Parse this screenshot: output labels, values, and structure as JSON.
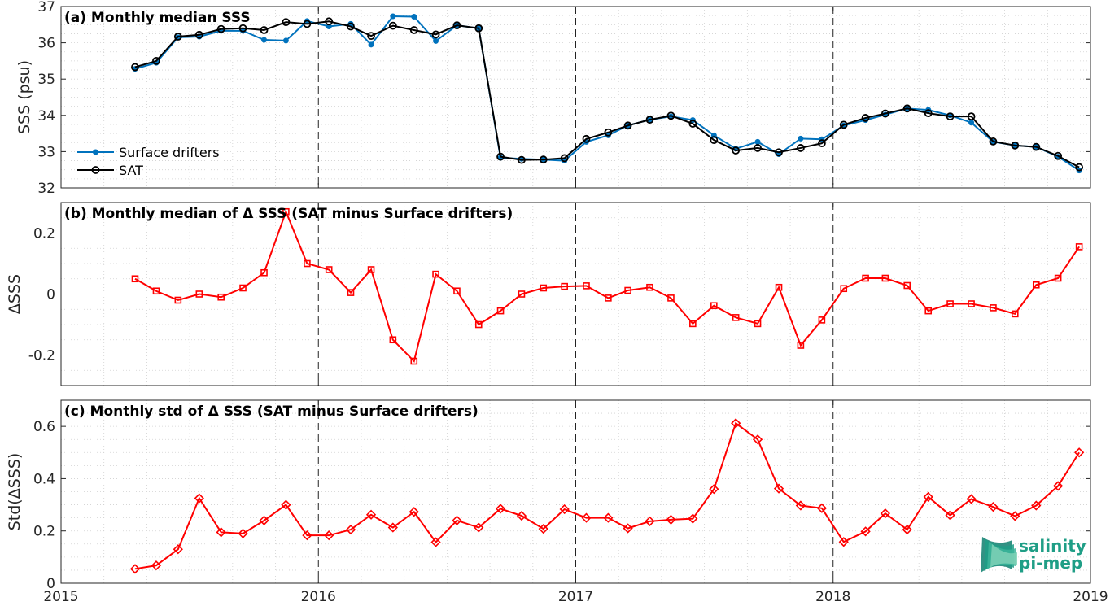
{
  "chart_data": [
    {
      "type": "line",
      "title": "(a) Monthly median SSS",
      "xlabel": "",
      "ylabel": "SSS (psu)",
      "ylim": [
        32,
        37
      ],
      "yticks": [
        "32",
        "33",
        "34",
        "35",
        "36",
        "37"
      ],
      "xlim": [
        "2015-01",
        "2019-01"
      ],
      "xticks": [
        "2015",
        "2016",
        "2017",
        "2018",
        "2019"
      ],
      "grid": "minor-dotted",
      "legend": "bottom-left",
      "x": [
        "2015-04",
        "2015-05",
        "2015-06",
        "2015-07",
        "2015-08",
        "2015-09",
        "2015-10",
        "2015-11",
        "2015-12",
        "2016-01",
        "2016-02",
        "2016-03",
        "2016-04",
        "2016-05",
        "2016-06",
        "2016-07",
        "2016-08",
        "2016-09",
        "2016-10",
        "2016-11",
        "2016-12",
        "2017-01",
        "2017-02",
        "2017-03",
        "2017-04",
        "2017-05",
        "2017-06",
        "2017-07",
        "2017-08",
        "2017-09",
        "2017-10",
        "2017-11",
        "2017-12",
        "2018-01",
        "2018-02",
        "2018-03",
        "2018-04",
        "2018-05",
        "2018-06",
        "2018-07",
        "2018-08",
        "2018-09",
        "2018-10",
        "2018-11",
        "2018-12"
      ],
      "series": [
        {
          "name": "Surface drifters",
          "color": "#0072BD",
          "marker": "dot",
          "values": [
            35.28,
            35.45,
            36.15,
            36.17,
            36.33,
            36.33,
            36.08,
            36.06,
            36.6,
            36.45,
            36.52,
            35.95,
            36.73,
            36.72,
            36.05,
            36.48,
            36.4,
            32.83,
            32.8,
            32.78,
            32.75,
            33.27,
            33.45,
            33.72,
            33.88,
            33.97,
            33.87,
            33.45,
            33.08,
            33.27,
            32.93,
            33.36,
            33.34,
            33.72,
            33.87,
            34.02,
            34.19,
            34.15,
            34.0,
            33.8,
            33.27,
            33.17,
            33.13,
            32.86,
            32.48
          ]
        },
        {
          "name": "SAT",
          "color": "#000000",
          "marker": "circle",
          "values": [
            35.33,
            35.5,
            36.17,
            36.22,
            36.38,
            36.4,
            36.35,
            36.57,
            36.52,
            36.59,
            36.45,
            36.19,
            36.47,
            36.35,
            36.23,
            36.48,
            36.4,
            32.86,
            32.77,
            32.78,
            32.82,
            33.35,
            33.53,
            33.72,
            33.88,
            33.99,
            33.77,
            33.32,
            33.03,
            33.1,
            32.98,
            33.1,
            33.23,
            33.74,
            33.93,
            34.05,
            34.19,
            34.06,
            33.97,
            33.97,
            33.28,
            33.17,
            33.13,
            32.88,
            32.57
          ]
        }
      ]
    },
    {
      "type": "line",
      "title": "(b) Monthly median of Δ SSS (SAT minus Surface drifters)",
      "xlabel": "",
      "ylabel": "ΔSSS",
      "ylim": [
        -0.3,
        0.3
      ],
      "yticks": [
        "-0.2",
        "0",
        "0.2"
      ],
      "xlim": [
        "2015-01",
        "2019-01"
      ],
      "grid": "minor-dotted",
      "reference_line": 0,
      "x": [
        "2015-04",
        "2015-05",
        "2015-06",
        "2015-07",
        "2015-08",
        "2015-09",
        "2015-10",
        "2015-11",
        "2015-12",
        "2016-01",
        "2016-02",
        "2016-03",
        "2016-04",
        "2016-05",
        "2016-06",
        "2016-07",
        "2016-08",
        "2016-09",
        "2016-10",
        "2016-11",
        "2016-12",
        "2017-01",
        "2017-02",
        "2017-03",
        "2017-04",
        "2017-05",
        "2017-06",
        "2017-07",
        "2017-08",
        "2017-09",
        "2017-10",
        "2017-11",
        "2017-12",
        "2018-01",
        "2018-02",
        "2018-03",
        "2018-04",
        "2018-05",
        "2018-06",
        "2018-07",
        "2018-08",
        "2018-09",
        "2018-10",
        "2018-11",
        "2018-12"
      ],
      "series": [
        {
          "color": "#FF0000",
          "marker": "square",
          "values": [
            0.05,
            0.01,
            -0.02,
            0.0,
            -0.01,
            0.02,
            0.07,
            0.27,
            0.1,
            0.08,
            0.005,
            0.08,
            -0.15,
            -0.22,
            0.065,
            0.01,
            -0.1,
            -0.055,
            0.0,
            0.02,
            0.025,
            0.027,
            -0.013,
            0.012,
            0.022,
            -0.013,
            -0.097,
            -0.038,
            -0.077,
            -0.097,
            0.022,
            -0.168,
            -0.085,
            0.018,
            0.052,
            0.052,
            0.028,
            -0.055,
            -0.032,
            -0.032,
            -0.045,
            -0.065,
            0.03,
            0.052,
            0.155
          ]
        }
      ]
    },
    {
      "type": "line",
      "title": "(c) Monthly std of Δ SSS (SAT minus Surface drifters)",
      "xlabel": "",
      "ylabel": "Std(ΔSSS)",
      "ylim": [
        0,
        0.7
      ],
      "yticks": [
        "0",
        "0.2",
        "0.4",
        "0.6"
      ],
      "xlim": [
        "2015-01",
        "2019-01"
      ],
      "xticks": [
        "2015",
        "2016",
        "2017",
        "2018",
        "2019"
      ],
      "grid": "minor-dotted",
      "x": [
        "2015-04",
        "2015-05",
        "2015-06",
        "2015-07",
        "2015-08",
        "2015-09",
        "2015-10",
        "2015-11",
        "2015-12",
        "2016-01",
        "2016-02",
        "2016-03",
        "2016-04",
        "2016-05",
        "2016-06",
        "2016-07",
        "2016-08",
        "2016-09",
        "2016-10",
        "2016-11",
        "2016-12",
        "2017-01",
        "2017-02",
        "2017-03",
        "2017-04",
        "2017-05",
        "2017-06",
        "2017-07",
        "2017-08",
        "2017-09",
        "2017-10",
        "2017-11",
        "2017-12",
        "2018-01",
        "2018-02",
        "2018-03",
        "2018-04",
        "2018-05",
        "2018-06",
        "2018-07",
        "2018-08",
        "2018-09",
        "2018-10",
        "2018-11",
        "2018-12"
      ],
      "series": [
        {
          "color": "#FF0000",
          "marker": "diamond",
          "values": [
            0.055,
            0.068,
            0.13,
            0.325,
            0.195,
            0.19,
            0.24,
            0.3,
            0.183,
            0.183,
            0.205,
            0.262,
            0.213,
            0.273,
            0.157,
            0.24,
            0.213,
            0.285,
            0.258,
            0.208,
            0.283,
            0.25,
            0.25,
            0.21,
            0.237,
            0.243,
            0.247,
            0.36,
            0.612,
            0.55,
            0.362,
            0.297,
            0.287,
            0.158,
            0.198,
            0.267,
            0.205,
            0.33,
            0.26,
            0.322,
            0.292,
            0.257,
            0.297,
            0.372,
            0.5
          ]
        }
      ]
    }
  ],
  "logo": {
    "line1": "salinity",
    "line2": "pi-mep"
  }
}
